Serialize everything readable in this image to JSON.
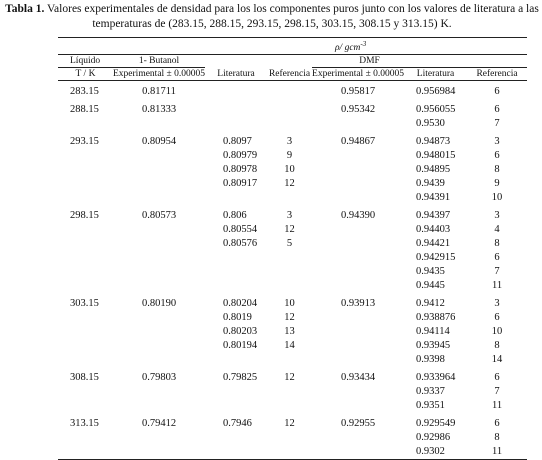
{
  "caption": {
    "label": "Tabla 1.",
    "text": "Valores experimentales de densidad para los los componentes puros junto con los valores de literatura a las temperaturas de (283.15, 288.15, 293.15, 298.15, 303.15, 308.15 y 313.15) K."
  },
  "table": {
    "header": {
      "density": "ρ/ gcm",
      "density_exp": "-3",
      "liquid": "Líquido",
      "butanol": "1- Butanol",
      "dmf": "DMF",
      "temperature": "T / K",
      "butanol_experimental": "Experimental ± 0.00005",
      "butanol_literature": "Literatura",
      "butanol_reference": "Referencia",
      "dmf_experimental": "Experimental ± 0.00005",
      "dmf_literature": "Literatura",
      "dmf_reference": "Referencia"
    },
    "groups": [
      {
        "t": "283.15",
        "butanol_exp": "0.81711",
        "dmf_exp": "0.95817",
        "dmf_lit": [
          {
            "value": "0.956984",
            "ref": "6"
          }
        ]
      },
      {
        "t": "288.15",
        "butanol_exp": "0.81333",
        "dmf_exp": "0.95342",
        "dmf_lit": [
          {
            "value": "0.956055",
            "ref": "6"
          },
          {
            "value": "0.9530",
            "ref": "7"
          }
        ]
      },
      {
        "t": "293.15",
        "butanol_exp": "0.80954",
        "butanol_lit": [
          {
            "value": "0.8097",
            "ref": "3"
          },
          {
            "value": "0.80979",
            "ref": "9"
          },
          {
            "value": "0.80978",
            "ref": "10"
          },
          {
            "value": "0.80917",
            "ref": "12"
          }
        ],
        "dmf_exp": "0.94867",
        "dmf_lit": [
          {
            "value": "0.94873",
            "ref": "3"
          },
          {
            "value": "0.948015",
            "ref": "6"
          },
          {
            "value": "0.94895",
            "ref": "8"
          },
          {
            "value": "0.9439",
            "ref": "9"
          },
          {
            "value": "0.94391",
            "ref": "10"
          }
        ]
      },
      {
        "t": "298.15",
        "butanol_exp": "0.80573",
        "butanol_lit": [
          {
            "value": "0.806",
            "ref": "3"
          },
          {
            "value": "0.80554",
            "ref": "12"
          },
          {
            "value": "0.80576",
            "ref": "5"
          }
        ],
        "dmf_exp": "0.94390",
        "dmf_lit": [
          {
            "value": "0.94397",
            "ref": "3"
          },
          {
            "value": "0.94403",
            "ref": "4"
          },
          {
            "value": "0.94421",
            "ref": "8"
          },
          {
            "value": "0.942915",
            "ref": "6"
          },
          {
            "value": "0.9435",
            "ref": "7"
          },
          {
            "value": "0.9445",
            "ref": "11"
          }
        ]
      },
      {
        "t": "303.15",
        "butanol_exp": "0.80190",
        "butanol_lit": [
          {
            "value": "0.80204",
            "ref": "10"
          },
          {
            "value": "0.8019",
            "ref": "12"
          },
          {
            "value": "0.80203",
            "ref": "13"
          },
          {
            "value": "0.80194",
            "ref": "14"
          }
        ],
        "dmf_exp": "0.93913",
        "dmf_lit": [
          {
            "value": "0.9412",
            "ref": "3"
          },
          {
            "value": "0.938876",
            "ref": "6"
          },
          {
            "value": "0.94114",
            "ref": "10"
          },
          {
            "value": "0.93945",
            "ref": "8"
          },
          {
            "value": "0.9398",
            "ref": "14"
          }
        ]
      },
      {
        "t": "308.15",
        "butanol_exp": "0.79803",
        "butanol_lit": [
          {
            "value": "0.79825",
            "ref": "12"
          }
        ],
        "dmf_exp": "0.93434",
        "dmf_lit": [
          {
            "value": "0.933964",
            "ref": "6"
          },
          {
            "value": "0.9337",
            "ref": "7"
          },
          {
            "value": "0.9351",
            "ref": "11"
          }
        ]
      },
      {
        "t": "313.15",
        "butanol_exp": "0.79412",
        "butanol_lit": [
          {
            "value": "0.7946",
            "ref": "12"
          }
        ],
        "dmf_exp": "0.92955",
        "dmf_lit": [
          {
            "value": "0.929549",
            "ref": "6"
          },
          {
            "value": "0.92986",
            "ref": "8"
          },
          {
            "value": "0.9302",
            "ref": "11"
          }
        ]
      }
    ]
  }
}
